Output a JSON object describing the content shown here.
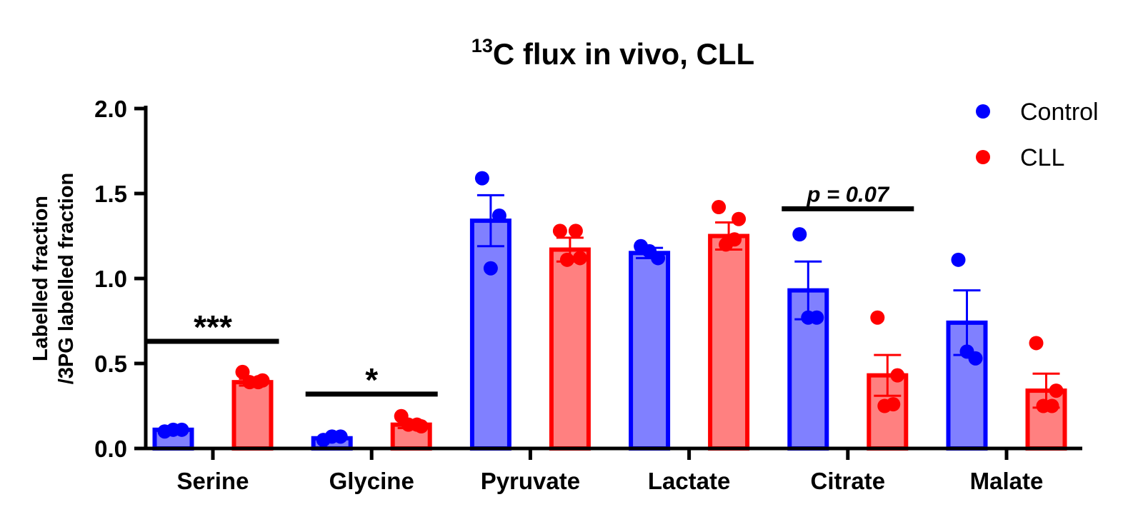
{
  "chart_data": {
    "type": "bar",
    "title_superscript": "13",
    "title_main": "C flux in vivo, CLL",
    "ylabel_line1": "Labelled fraction",
    "ylabel_line2": "/3PG labelled fraction",
    "xlabel": "",
    "ylim": [
      0,
      2.0
    ],
    "yticks": [
      "0.0",
      "0.5",
      "1.0",
      "1.5",
      "2.0"
    ],
    "categories": [
      "Serine",
      "Glycine",
      "Pyruvate",
      "Lactate",
      "Citrate",
      "Malate"
    ],
    "series": [
      {
        "name": "Control",
        "color": "#0000ff",
        "fill": "#8080ff",
        "values": [
          0.11,
          0.06,
          1.34,
          1.15,
          0.93,
          0.74
        ],
        "errors": [
          0.01,
          0.01,
          0.15,
          0.03,
          0.17,
          0.19
        ],
        "points": [
          [
            0.1,
            0.11,
            0.11
          ],
          [
            0.05,
            0.07,
            0.07
          ],
          [
            1.59,
            1.37,
            1.06
          ],
          [
            1.19,
            1.12,
            1.16
          ],
          [
            1.26,
            0.77,
            0.77
          ],
          [
            1.11,
            0.53,
            0.57
          ]
        ]
      },
      {
        "name": "CLL",
        "color": "#ff0000",
        "fill": "#ff8080",
        "values": [
          0.39,
          0.14,
          1.17,
          1.25,
          0.43,
          0.34
        ],
        "errors": [
          0.02,
          0.02,
          0.07,
          0.08,
          0.12,
          0.1
        ],
        "points": [
          [
            0.45,
            0.4,
            0.39,
            0.39
          ],
          [
            0.19,
            0.13,
            0.14,
            0.14
          ],
          [
            1.28,
            1.12,
            1.11,
            1.28
          ],
          [
            1.42,
            1.35,
            1.2,
            1.23
          ],
          [
            0.77,
            0.43,
            0.25,
            0.26
          ],
          [
            0.62,
            0.34,
            0.25,
            0.25
          ]
        ]
      }
    ],
    "significance": [
      {
        "category_index": 0,
        "label": "***",
        "y": 0.63
      },
      {
        "category_index": 1,
        "label": "*",
        "y": 0.32
      },
      {
        "category_index": 4,
        "label": "p = 0.07",
        "y": 1.41
      }
    ],
    "legend": {
      "position": "top-right",
      "entries": [
        "Control",
        "CLL"
      ]
    }
  }
}
